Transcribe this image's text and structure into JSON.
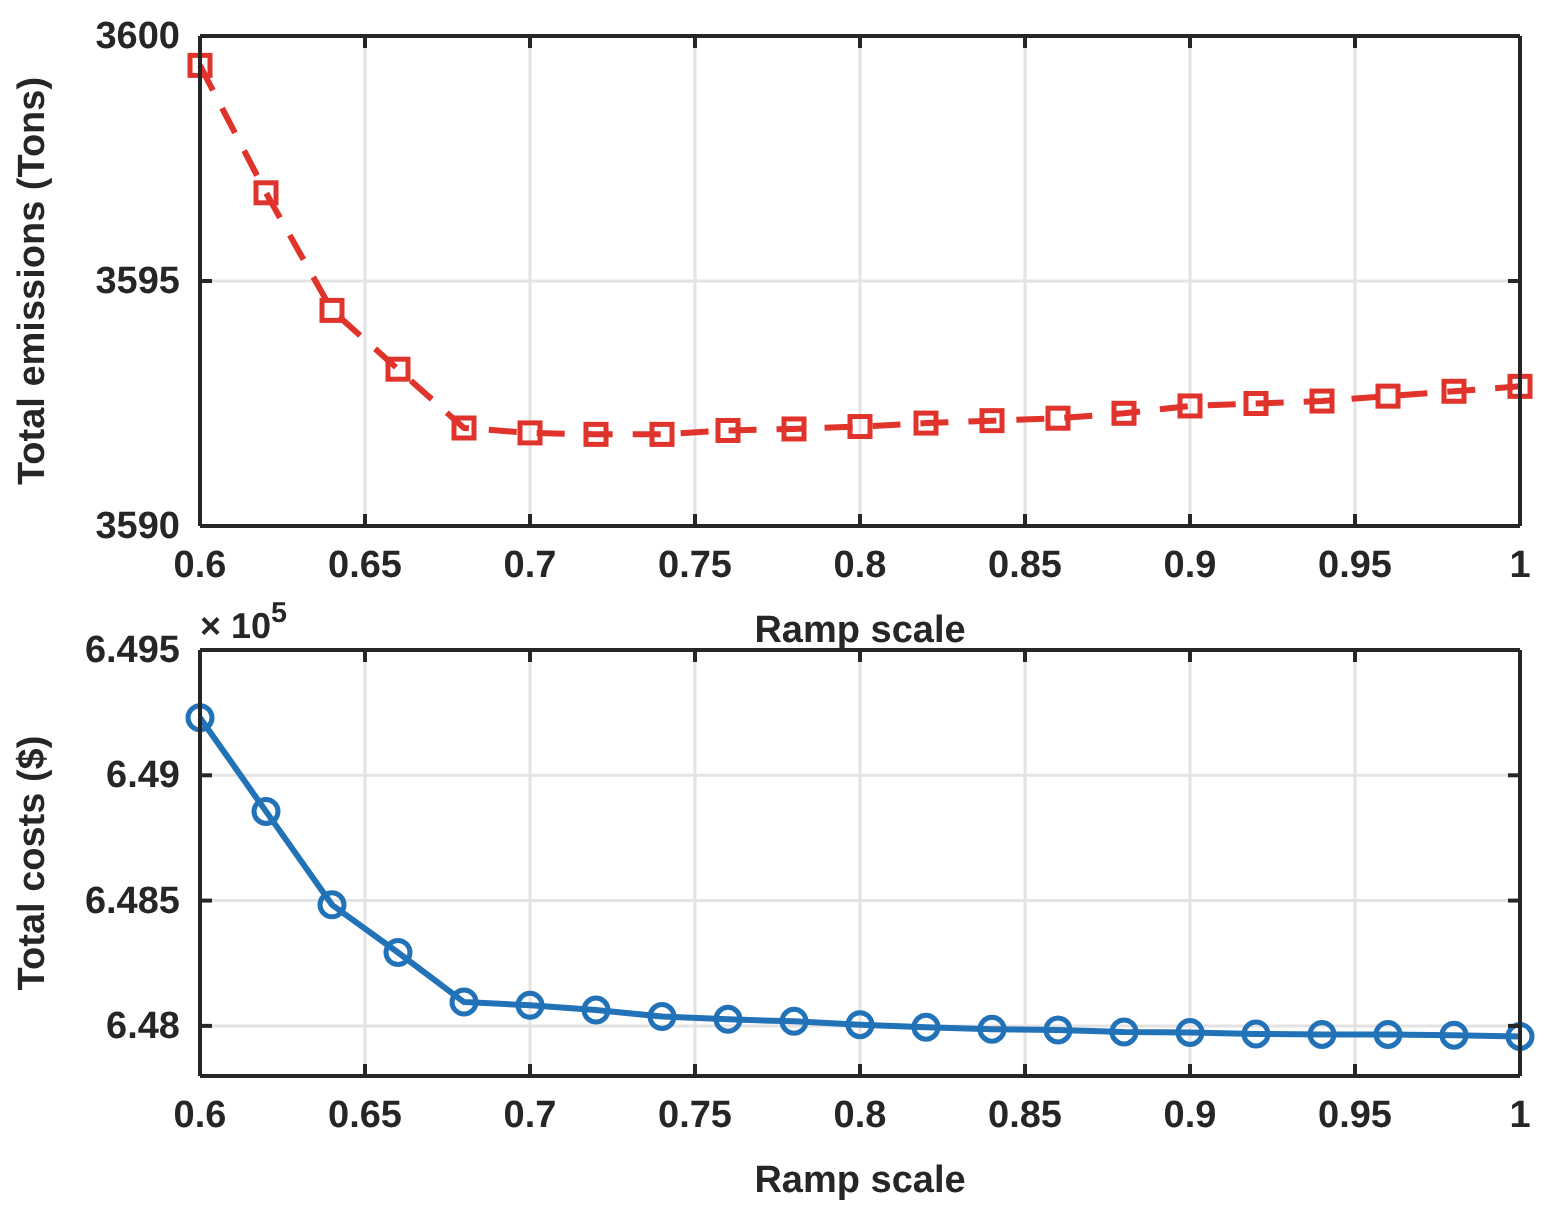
{
  "chart_data": [
    {
      "type": "line",
      "xlabel": "Ramp scale",
      "ylabel": "Total emissions (Tons)",
      "xlim": [
        0.6,
        1
      ],
      "xticks": [
        0.6,
        0.65,
        0.7,
        0.75,
        0.8,
        0.85,
        0.9,
        0.95,
        1
      ],
      "ylim": [
        3590,
        3600
      ],
      "yticks": [
        3590,
        3595,
        3600
      ],
      "grid": true,
      "marker": "square",
      "line_style": "dashed",
      "x": [
        0.6,
        0.62,
        0.64,
        0.66,
        0.68,
        0.7,
        0.72,
        0.74,
        0.76,
        0.78,
        0.8,
        0.82,
        0.84,
        0.86,
        0.88,
        0.9,
        0.92,
        0.94,
        0.96,
        0.98,
        1
      ],
      "series": [
        {
          "color": "#e0332b",
          "values": [
            3599.4,
            3596.8,
            3594.4,
            3593.2,
            3592.0,
            3591.9,
            3591.87,
            3591.87,
            3591.95,
            3591.98,
            3592.03,
            3592.1,
            3592.15,
            3592.2,
            3592.3,
            3592.45,
            3592.5,
            3592.55,
            3592.65,
            3592.75,
            3592.85
          ]
        }
      ]
    },
    {
      "type": "line",
      "xlabel": "Ramp scale",
      "ylabel": "Total costs ($)",
      "annotations": [
        "× 10$^{5}$"
      ],
      "xlim": [
        0.6,
        1
      ],
      "xticks": [
        0.6,
        0.65,
        0.7,
        0.75,
        0.8,
        0.85,
        0.9,
        0.95,
        1
      ],
      "ylim": [
        6.478,
        6.495
      ],
      "yticks": [
        6.48,
        6.485,
        6.49,
        6.495
      ],
      "grid": true,
      "marker": "circle",
      "line_style": "solid",
      "x": [
        0.6,
        0.62,
        0.64,
        0.66,
        0.68,
        0.7,
        0.72,
        0.74,
        0.76,
        0.78,
        0.8,
        0.82,
        0.84,
        0.86,
        0.88,
        0.9,
        0.92,
        0.94,
        0.96,
        0.98,
        1
      ],
      "series": [
        {
          "color": "#2272b8",
          "values": [
            6.4923,
            6.48856,
            6.48483,
            6.48293,
            6.48095,
            6.48082,
            6.48063,
            6.48037,
            6.48026,
            6.48018,
            6.48005,
            6.47995,
            6.47987,
            6.47984,
            6.47976,
            6.47974,
            6.47968,
            6.47966,
            6.47966,
            6.47963,
            6.47958
          ]
        }
      ]
    }
  ]
}
